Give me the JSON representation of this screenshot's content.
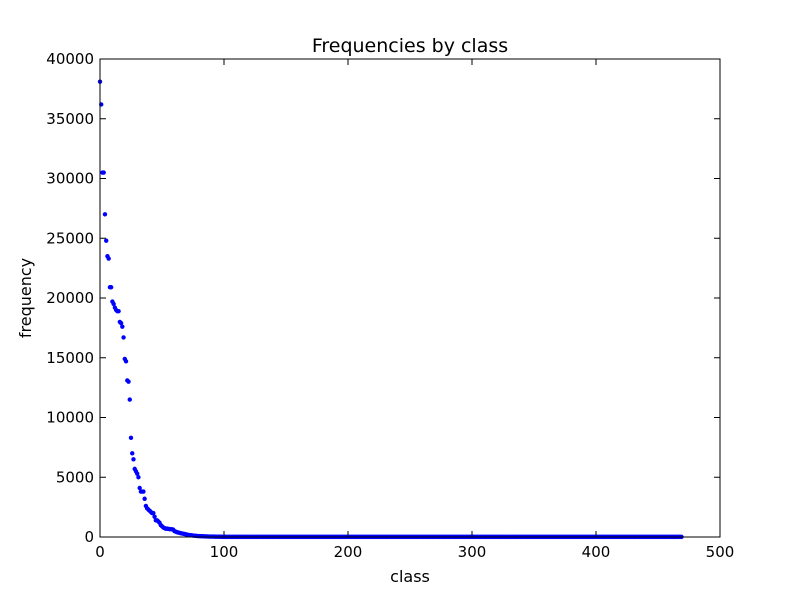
{
  "chart_data": {
    "type": "scatter",
    "title": "Frequencies by class",
    "xlabel": "class",
    "ylabel": "frequency",
    "xlim": [
      0,
      500
    ],
    "ylim": [
      0,
      40000
    ],
    "xticks": [
      0,
      100,
      200,
      300,
      400,
      500
    ],
    "yticks": [
      0,
      5000,
      10000,
      15000,
      20000,
      25000,
      30000,
      35000,
      40000
    ],
    "xtick_labels": [
      "0",
      "100",
      "200",
      "300",
      "400",
      "500"
    ],
    "ytick_labels": [
      "0",
      "5000",
      "10000",
      "15000",
      "20000",
      "25000",
      "30000",
      "35000",
      "40000"
    ],
    "grid": false,
    "marker_color": "#0000ff",
    "series": [
      {
        "values": [
          38100,
          36200,
          30500,
          30500,
          27000,
          24800,
          23500,
          23300,
          20900,
          20900,
          19700,
          19500,
          19200,
          19000,
          18900,
          18900,
          18000,
          17900,
          17600,
          16700,
          14900,
          14700,
          13100,
          13000,
          11500,
          8300,
          7000,
          6500,
          5700,
          5500,
          5300,
          5000,
          4100,
          3800,
          3800,
          3800,
          3200,
          2600,
          2400,
          2300,
          2200,
          2100,
          2000,
          2000,
          1700,
          1400,
          1400,
          1300,
          1200,
          1000,
          900,
          800,
          750,
          700,
          700,
          680,
          660,
          650,
          640,
          620,
          500,
          450,
          400,
          380,
          350,
          320,
          300,
          280,
          260,
          230,
          200,
          180,
          160,
          150,
          140,
          120,
          110,
          100,
          90,
          80,
          75,
          70,
          65,
          60,
          55,
          50,
          45,
          42,
          40,
          38,
          35,
          33,
          31,
          29,
          27,
          25,
          23,
          21,
          20,
          19
        ]
      }
    ],
    "tail": {
      "from": 100,
      "to": 469,
      "value": 10
    }
  }
}
